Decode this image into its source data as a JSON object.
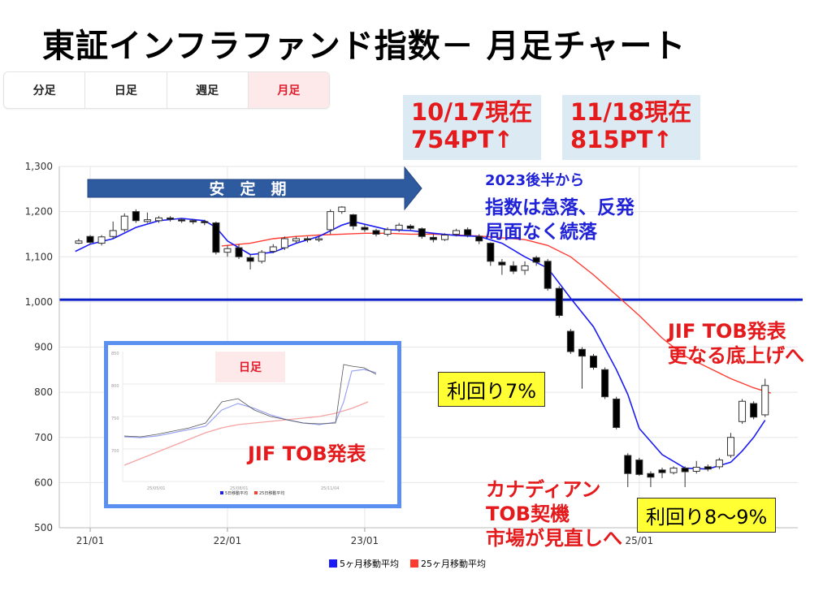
{
  "title": "東証インフラファンド指数－ 月足チャート",
  "tabs": [
    {
      "label": "分足",
      "active": false
    },
    {
      "label": "日足",
      "active": false
    },
    {
      "label": "週足",
      "active": false
    },
    {
      "label": "月足",
      "active": true
    }
  ],
  "info_boxes": [
    {
      "line1": "10/17現在",
      "line2": "754PT↑"
    },
    {
      "line1": "11/18現在",
      "line2": "815PT↑"
    }
  ],
  "arrow_label": "安　定　期",
  "annotations": {
    "decline_line1": "2023後半から",
    "decline_line2": "指数は急落、反発",
    "decline_line3": "局面なく続落",
    "tob_line1": "JIF TOB発表",
    "tob_line2": "更なる底上げへ",
    "canadian_line1": "カナディアン",
    "canadian_line2": "TOB契機",
    "canadian_line3": "市場が見直しへ",
    "yield_7": "利回り7%",
    "yield_8_9": "利回り8～9%"
  },
  "inset": {
    "tab_label": "日足",
    "annotation": "JIF TOB発表",
    "x_ticks": [
      "25/05/01",
      "25/08/01",
      "25/11/04"
    ],
    "y_ticks": [
      "850",
      "800",
      "750",
      "700"
    ],
    "legend": [
      "5日移動平均",
      "25日移動平均"
    ]
  },
  "legend": [
    {
      "label": "5ヶ月移動平均",
      "color": "#1b1bf5"
    },
    {
      "label": "25ヶ月移動平均",
      "color": "#ff3b30"
    }
  ],
  "colors": {
    "up_fill": "#ffffff",
    "down_fill": "#000000",
    "ma5": "#1b1bf5",
    "ma25": "#ff3b30",
    "reference_line": "#0a1fc4",
    "arrow": "#2e5aa0"
  },
  "chart_data": {
    "type": "candlestick",
    "x_tick_labels": [
      "21/01",
      "22/01",
      "23/01",
      "25/01"
    ],
    "x_tick_months": [
      0,
      12,
      24,
      48
    ],
    "y_ticks": [
      500,
      600,
      700,
      800,
      900,
      1000,
      1100,
      1200,
      1300
    ],
    "y_tick_labels": [
      "500",
      "600",
      "700",
      "800",
      "900",
      "1,000",
      "1,100",
      "1,200",
      "1,300"
    ],
    "ylim": [
      500,
      1300
    ],
    "reference_line": 1005,
    "grid": true,
    "stable_period_months": [
      0,
      24
    ],
    "candles": [
      {
        "m": -1,
        "o": 1130,
        "c": 1135,
        "h": 1140,
        "l": 1128
      },
      {
        "m": 0,
        "o": 1145,
        "c": 1132,
        "h": 1148,
        "l": 1128
      },
      {
        "m": 1,
        "o": 1130,
        "c": 1144,
        "h": 1148,
        "l": 1125
      },
      {
        "m": 2,
        "o": 1145,
        "c": 1158,
        "h": 1178,
        "l": 1140
      },
      {
        "m": 3,
        "o": 1160,
        "c": 1190,
        "h": 1196,
        "l": 1155
      },
      {
        "m": 4,
        "o": 1200,
        "c": 1180,
        "h": 1205,
        "l": 1175
      },
      {
        "m": 5,
        "o": 1178,
        "c": 1182,
        "h": 1198,
        "l": 1175
      },
      {
        "m": 6,
        "o": 1180,
        "c": 1186,
        "h": 1190,
        "l": 1175
      },
      {
        "m": 7,
        "o": 1186,
        "c": 1183,
        "h": 1190,
        "l": 1178
      },
      {
        "m": 8,
        "o": 1182,
        "c": 1180,
        "h": 1186,
        "l": 1175
      },
      {
        "m": 9,
        "o": 1180,
        "c": 1178,
        "h": 1184,
        "l": 1172
      },
      {
        "m": 10,
        "o": 1178,
        "c": 1176,
        "h": 1182,
        "l": 1170
      },
      {
        "m": 11,
        "o": 1175,
        "c": 1110,
        "h": 1178,
        "l": 1105
      },
      {
        "m": 12,
        "o": 1110,
        "c": 1118,
        "h": 1125,
        "l": 1100
      },
      {
        "m": 13,
        "o": 1120,
        "c": 1100,
        "h": 1128,
        "l": 1095
      },
      {
        "m": 14,
        "o": 1098,
        "c": 1090,
        "h": 1105,
        "l": 1072
      },
      {
        "m": 15,
        "o": 1090,
        "c": 1110,
        "h": 1115,
        "l": 1085
      },
      {
        "m": 16,
        "o": 1112,
        "c": 1122,
        "h": 1128,
        "l": 1108
      },
      {
        "m": 17,
        "o": 1120,
        "c": 1140,
        "h": 1145,
        "l": 1115
      },
      {
        "m": 18,
        "o": 1135,
        "c": 1140,
        "h": 1145,
        "l": 1130
      },
      {
        "m": 19,
        "o": 1140,
        "c": 1138,
        "h": 1145,
        "l": 1132
      },
      {
        "m": 20,
        "o": 1138,
        "c": 1140,
        "h": 1145,
        "l": 1133
      },
      {
        "m": 21,
        "o": 1160,
        "c": 1200,
        "h": 1205,
        "l": 1150
      },
      {
        "m": 22,
        "o": 1200,
        "c": 1210,
        "h": 1212,
        "l": 1195
      },
      {
        "m": 23,
        "o": 1193,
        "c": 1168,
        "h": 1195,
        "l": 1160
      },
      {
        "m": 24,
        "o": 1165,
        "c": 1160,
        "h": 1172,
        "l": 1155
      },
      {
        "m": 25,
        "o": 1158,
        "c": 1150,
        "h": 1162,
        "l": 1145
      },
      {
        "m": 26,
        "o": 1150,
        "c": 1160,
        "h": 1165,
        "l": 1145
      },
      {
        "m": 27,
        "o": 1160,
        "c": 1170,
        "h": 1175,
        "l": 1155
      },
      {
        "m": 28,
        "o": 1168,
        "c": 1163,
        "h": 1172,
        "l": 1158
      },
      {
        "m": 29,
        "o": 1162,
        "c": 1145,
        "h": 1165,
        "l": 1140
      },
      {
        "m": 30,
        "o": 1143,
        "c": 1138,
        "h": 1150,
        "l": 1132
      },
      {
        "m": 31,
        "o": 1138,
        "c": 1148,
        "h": 1152,
        "l": 1135
      },
      {
        "m": 32,
        "o": 1150,
        "c": 1158,
        "h": 1162,
        "l": 1145
      },
      {
        "m": 33,
        "o": 1160,
        "c": 1148,
        "h": 1165,
        "l": 1143
      },
      {
        "m": 34,
        "o": 1145,
        "c": 1135,
        "h": 1150,
        "l": 1128
      },
      {
        "m": 35,
        "o": 1130,
        "c": 1090,
        "h": 1132,
        "l": 1080
      },
      {
        "m": 36,
        "o": 1088,
        "c": 1082,
        "h": 1095,
        "l": 1060
      },
      {
        "m": 37,
        "o": 1080,
        "c": 1068,
        "h": 1090,
        "l": 1062
      },
      {
        "m": 38,
        "o": 1070,
        "c": 1080,
        "h": 1090,
        "l": 1060
      },
      {
        "m": 39,
        "o": 1098,
        "c": 1088,
        "h": 1102,
        "l": 1080
      },
      {
        "m": 40,
        "o": 1090,
        "c": 1030,
        "h": 1095,
        "l": 1025
      },
      {
        "m": 41,
        "o": 1030,
        "c": 970,
        "h": 1035,
        "l": 965
      },
      {
        "m": 42,
        "o": 935,
        "c": 890,
        "h": 940,
        "l": 885
      },
      {
        "m": 43,
        "o": 895,
        "c": 880,
        "h": 900,
        "l": 808
      },
      {
        "m": 44,
        "o": 880,
        "c": 855,
        "h": 885,
        "l": 850
      },
      {
        "m": 45,
        "o": 850,
        "c": 790,
        "h": 855,
        "l": 785
      },
      {
        "m": 46,
        "o": 785,
        "c": 722,
        "h": 790,
        "l": 718
      },
      {
        "m": 47,
        "o": 660,
        "c": 620,
        "h": 665,
        "l": 590
      },
      {
        "m": 48,
        "o": 650,
        "c": 618,
        "h": 655,
        "l": 615
      },
      {
        "m": 49,
        "o": 620,
        "c": 612,
        "h": 625,
        "l": 590
      },
      {
        "m": 50,
        "o": 628,
        "c": 622,
        "h": 633,
        "l": 610
      },
      {
        "m": 51,
        "o": 622,
        "c": 632,
        "h": 636,
        "l": 618
      },
      {
        "m": 52,
        "o": 632,
        "c": 624,
        "h": 636,
        "l": 590
      },
      {
        "m": 53,
        "o": 625,
        "c": 634,
        "h": 648,
        "l": 620
      },
      {
        "m": 54,
        "o": 635,
        "c": 630,
        "h": 640,
        "l": 625
      },
      {
        "m": 55,
        "o": 635,
        "c": 650,
        "h": 655,
        "l": 630
      },
      {
        "m": 56,
        "o": 660,
        "c": 700,
        "h": 710,
        "l": 655
      },
      {
        "m": 57,
        "o": 735,
        "c": 780,
        "h": 785,
        "l": 730
      },
      {
        "m": 58,
        "o": 775,
        "c": 745,
        "h": 780,
        "l": 740
      },
      {
        "m": 59,
        "o": 750,
        "c": 815,
        "h": 830,
        "l": 745
      }
    ],
    "ma5": [
      [
        -1.3,
        1112
      ],
      [
        0,
        1128
      ],
      [
        2,
        1140
      ],
      [
        4,
        1165
      ],
      [
        6,
        1180
      ],
      [
        8,
        1185
      ],
      [
        10,
        1180
      ],
      [
        11,
        1165
      ],
      [
        12,
        1135
      ],
      [
        14,
        1105
      ],
      [
        16,
        1110
      ],
      [
        18,
        1130
      ],
      [
        20,
        1145
      ],
      [
        22,
        1170
      ],
      [
        23,
        1178
      ],
      [
        24,
        1172
      ],
      [
        26,
        1160
      ],
      [
        28,
        1158
      ],
      [
        30,
        1152
      ],
      [
        32,
        1147
      ],
      [
        34,
        1145
      ],
      [
        36,
        1130
      ],
      [
        38,
        1100
      ],
      [
        40,
        1075
      ],
      [
        42,
        1008
      ],
      [
        44,
        945
      ],
      [
        46,
        850
      ],
      [
        47,
        795
      ],
      [
        48,
        720
      ],
      [
        50,
        662
      ],
      [
        52,
        632
      ],
      [
        54,
        630
      ],
      [
        56,
        645
      ],
      [
        57,
        670
      ],
      [
        58,
        700
      ],
      [
        59,
        738
      ]
    ],
    "ma25": [
      [
        11.5,
        1124
      ],
      [
        14,
        1130
      ],
      [
        16,
        1140
      ],
      [
        18,
        1145
      ],
      [
        20,
        1148
      ],
      [
        22,
        1150
      ],
      [
        24,
        1152
      ],
      [
        26,
        1152
      ],
      [
        28,
        1150
      ],
      [
        30,
        1150
      ],
      [
        32,
        1148
      ],
      [
        34,
        1146
      ],
      [
        36,
        1142
      ],
      [
        38,
        1138
      ],
      [
        40,
        1125
      ],
      [
        42,
        1100
      ],
      [
        44,
        1060
      ],
      [
        46,
        1015
      ],
      [
        48,
        970
      ],
      [
        50,
        920
      ],
      [
        52,
        880
      ],
      [
        54,
        855
      ],
      [
        56,
        830
      ],
      [
        58,
        810
      ],
      [
        59.5,
        798
      ]
    ]
  }
}
